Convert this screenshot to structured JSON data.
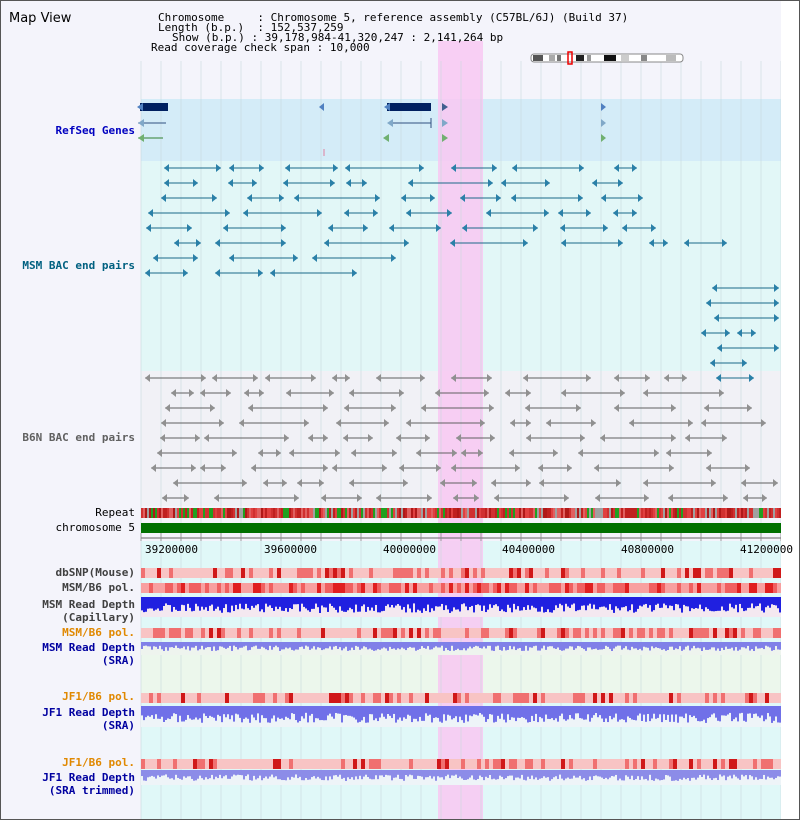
{
  "title": "Map View",
  "info": {
    "chromosome_label": "Chromosome",
    "chromosome_value": "Chromosome 5, reference assembly (C57BL/6J) (Build 37)",
    "length_label": "Length (b.p.)",
    "length_value": "152,537,259",
    "show_label": "Show (b.p.)",
    "show_value": "39,178,984-41,320,247 : 2,141,264 bp",
    "coverage_label": "Read coverage check span",
    "coverage_value": "10,000"
  },
  "tracks": {
    "refseq": "RefSeq Genes",
    "msm_bac": "MSM BAC end pairs",
    "b6n_bac": "B6N BAC end pairs",
    "repeat": "Repeat",
    "chromosome": "chromosome 5",
    "dbsnp": "dbSNP(Mouse)",
    "msm_b6_pol_1": "MSM/B6 pol.",
    "msm_read_depth_cap_1": "MSM Read Depth",
    "msm_read_depth_cap_2": "(Capillary)",
    "msm_b6_pol_2": "MSM/B6 pol.",
    "msm_read_depth_sra_1": "MSM Read Depth",
    "msm_read_depth_sra_2": "(SRA)",
    "jf1_b6_pol_1": "JF1/B6 pol.",
    "jf1_read_depth_sra_1": "JF1 Read Depth",
    "jf1_read_depth_sra_2": "(SRA)",
    "jf1_b6_pol_2": "JF1/B6 pol.",
    "jf1_read_depth_trim_1": "JF1 Read Depth",
    "jf1_read_depth_trim_2": "(SRA trimmed)"
  },
  "axis_ticks": [
    "39200000",
    "39600000",
    "40000000",
    "40400000",
    "40800000",
    "41200000"
  ],
  "colors": {
    "refseq_label": "#0000c0",
    "msm_bac_label": "#006080",
    "b6n_bac_label": "#606060",
    "pol_orange": "#e08800",
    "depth_blue": "#0000a0",
    "highlight": "#ffb0ff",
    "chromosome_bar": "#007000"
  }
}
